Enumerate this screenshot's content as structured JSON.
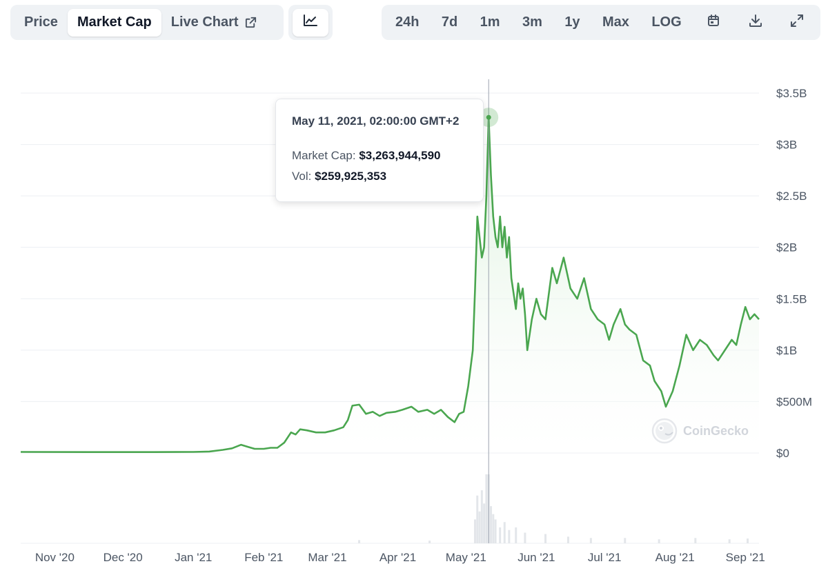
{
  "toolbar": {
    "tabs": [
      {
        "label": "Price",
        "active": false
      },
      {
        "label": "Market Cap",
        "active": true
      },
      {
        "label": "Live Chart",
        "active": false,
        "icon": "external-link-icon"
      }
    ],
    "chart_type_icon": "line-chart-icon",
    "ranges": [
      "24h",
      "7d",
      "1m",
      "3m",
      "1y",
      "Max",
      "LOG"
    ],
    "icons": [
      "calendar-icon",
      "download-icon",
      "expand-icon"
    ]
  },
  "tooltip": {
    "date": "May 11, 2021, 02:00:00 GMT+2",
    "market_cap_label": "Market Cap:",
    "market_cap_value": "$3,263,944,590",
    "vol_label": "Vol:",
    "vol_value": "$259,925,353"
  },
  "watermark": "CoinGecko",
  "colors": {
    "line": "#4aa64f",
    "fill_top": "#d7efd8",
    "grid": "#eceff3",
    "axis_text": "#4b5563",
    "volume_bar": "#e3e6ea"
  },
  "chart_data": {
    "type": "area",
    "series_label": "Market Cap",
    "x_tick_labels": [
      "Nov '20",
      "Dec '20",
      "Jan '21",
      "Feb '21",
      "Mar '21",
      "Apr '21",
      "May '21",
      "Jun '21",
      "Jul '21",
      "Aug '21",
      "Sep '21"
    ],
    "x_tick_dates": [
      "2020-11-01",
      "2020-12-01",
      "2021-01-01",
      "2021-02-01",
      "2021-03-01",
      "2021-04-01",
      "2021-05-01",
      "2021-06-01",
      "2021-07-01",
      "2021-08-01",
      "2021-09-01"
    ],
    "y_tick_labels": [
      "$0",
      "$500M",
      "$1B",
      "$1.5B",
      "$2B",
      "$2.5B",
      "$3B",
      "$3.5B"
    ],
    "y_tick_values": [
      0,
      500000000,
      1000000000,
      1500000000,
      2000000000,
      2500000000,
      3000000000,
      3500000000
    ],
    "ylim": [
      0,
      3500000000
    ],
    "xlim": [
      "2020-10-17",
      "2021-09-07"
    ],
    "grid": true,
    "hover_date": "2021-05-11",
    "market_cap": [
      [
        "2020-10-17",
        10000000
      ],
      [
        "2020-11-15",
        9000000
      ],
      [
        "2020-12-15",
        9000000
      ],
      [
        "2021-01-01",
        10000000
      ],
      [
        "2021-01-08",
        14000000
      ],
      [
        "2021-01-14",
        30000000
      ],
      [
        "2021-01-18",
        45000000
      ],
      [
        "2021-01-22",
        80000000
      ],
      [
        "2021-01-25",
        60000000
      ],
      [
        "2021-01-28",
        40000000
      ],
      [
        "2021-02-01",
        40000000
      ],
      [
        "2021-02-04",
        50000000
      ],
      [
        "2021-02-07",
        50000000
      ],
      [
        "2021-02-10",
        100000000
      ],
      [
        "2021-02-13",
        200000000
      ],
      [
        "2021-02-15",
        180000000
      ],
      [
        "2021-02-17",
        230000000
      ],
      [
        "2021-02-20",
        220000000
      ],
      [
        "2021-02-24",
        200000000
      ],
      [
        "2021-02-28",
        200000000
      ],
      [
        "2021-03-04",
        220000000
      ],
      [
        "2021-03-08",
        250000000
      ],
      [
        "2021-03-10",
        320000000
      ],
      [
        "2021-03-12",
        460000000
      ],
      [
        "2021-03-15",
        470000000
      ],
      [
        "2021-03-18",
        380000000
      ],
      [
        "2021-03-21",
        400000000
      ],
      [
        "2021-03-24",
        360000000
      ],
      [
        "2021-03-27",
        390000000
      ],
      [
        "2021-03-31",
        400000000
      ],
      [
        "2021-04-03",
        420000000
      ],
      [
        "2021-04-07",
        450000000
      ],
      [
        "2021-04-10",
        400000000
      ],
      [
        "2021-04-14",
        420000000
      ],
      [
        "2021-04-17",
        380000000
      ],
      [
        "2021-04-20",
        420000000
      ],
      [
        "2021-04-23",
        350000000
      ],
      [
        "2021-04-26",
        300000000
      ],
      [
        "2021-04-28",
        380000000
      ],
      [
        "2021-04-30",
        400000000
      ],
      [
        "2021-05-02",
        650000000
      ],
      [
        "2021-05-04",
        1000000000
      ],
      [
        "2021-05-05",
        1600000000
      ],
      [
        "2021-05-06",
        2300000000
      ],
      [
        "2021-05-07",
        2100000000
      ],
      [
        "2021-05-08",
        1900000000
      ],
      [
        "2021-05-09",
        2000000000
      ],
      [
        "2021-05-10",
        2500000000
      ],
      [
        "2021-05-11",
        3263944590
      ],
      [
        "2021-05-12",
        2700000000
      ],
      [
        "2021-05-13",
        2300000000
      ],
      [
        "2021-05-14",
        2100000000
      ],
      [
        "2021-05-15",
        2000000000
      ],
      [
        "2021-05-16",
        2300000000
      ],
      [
        "2021-05-17",
        2000000000
      ],
      [
        "2021-05-18",
        2200000000
      ],
      [
        "2021-05-19",
        1900000000
      ],
      [
        "2021-05-20",
        2100000000
      ],
      [
        "2021-05-21",
        1700000000
      ],
      [
        "2021-05-22",
        1550000000
      ],
      [
        "2021-05-23",
        1400000000
      ],
      [
        "2021-05-24",
        1650000000
      ],
      [
        "2021-05-25",
        1500000000
      ],
      [
        "2021-05-26",
        1600000000
      ],
      [
        "2021-05-27",
        1350000000
      ],
      [
        "2021-05-28",
        1000000000
      ],
      [
        "2021-05-30",
        1300000000
      ],
      [
        "2021-06-01",
        1500000000
      ],
      [
        "2021-06-03",
        1350000000
      ],
      [
        "2021-06-05",
        1300000000
      ],
      [
        "2021-06-08",
        1800000000
      ],
      [
        "2021-06-10",
        1650000000
      ],
      [
        "2021-06-13",
        1900000000
      ],
      [
        "2021-06-16",
        1600000000
      ],
      [
        "2021-06-19",
        1500000000
      ],
      [
        "2021-06-22",
        1700000000
      ],
      [
        "2021-06-25",
        1400000000
      ],
      [
        "2021-06-28",
        1300000000
      ],
      [
        "2021-07-01",
        1250000000
      ],
      [
        "2021-07-03",
        1100000000
      ],
      [
        "2021-07-05",
        1250000000
      ],
      [
        "2021-07-08",
        1400000000
      ],
      [
        "2021-07-10",
        1250000000
      ],
      [
        "2021-07-12",
        1200000000
      ],
      [
        "2021-07-15",
        1150000000
      ],
      [
        "2021-07-18",
        900000000
      ],
      [
        "2021-07-21",
        850000000
      ],
      [
        "2021-07-23",
        700000000
      ],
      [
        "2021-07-26",
        600000000
      ],
      [
        "2021-07-28",
        450000000
      ],
      [
        "2021-07-31",
        600000000
      ],
      [
        "2021-08-03",
        850000000
      ],
      [
        "2021-08-06",
        1150000000
      ],
      [
        "2021-08-09",
        1000000000
      ],
      [
        "2021-08-12",
        1100000000
      ],
      [
        "2021-08-15",
        1050000000
      ],
      [
        "2021-08-18",
        950000000
      ],
      [
        "2021-08-20",
        900000000
      ],
      [
        "2021-08-23",
        1000000000
      ],
      [
        "2021-08-26",
        1100000000
      ],
      [
        "2021-08-28",
        1050000000
      ],
      [
        "2021-08-30",
        1250000000
      ],
      [
        "2021-09-01",
        1420000000
      ],
      [
        "2021-09-03",
        1300000000
      ],
      [
        "2021-09-05",
        1350000000
      ],
      [
        "2021-09-07",
        1300000000
      ]
    ],
    "volume": [
      [
        "2021-03-15",
        12000000
      ],
      [
        "2021-04-15",
        10000000
      ],
      [
        "2021-05-05",
        90000000
      ],
      [
        "2021-05-06",
        180000000
      ],
      [
        "2021-05-07",
        120000000
      ],
      [
        "2021-05-08",
        200000000
      ],
      [
        "2021-05-09",
        150000000
      ],
      [
        "2021-05-10",
        260000000
      ],
      [
        "2021-05-11",
        259925353
      ],
      [
        "2021-05-12",
        140000000
      ],
      [
        "2021-05-13",
        110000000
      ],
      [
        "2021-05-14",
        90000000
      ],
      [
        "2021-05-16",
        60000000
      ],
      [
        "2021-05-18",
        80000000
      ],
      [
        "2021-05-20",
        50000000
      ],
      [
        "2021-05-23",
        60000000
      ],
      [
        "2021-05-27",
        40000000
      ],
      [
        "2021-06-05",
        35000000
      ],
      [
        "2021-06-15",
        25000000
      ],
      [
        "2021-06-25",
        20000000
      ],
      [
        "2021-07-10",
        20000000
      ],
      [
        "2021-07-25",
        15000000
      ],
      [
        "2021-08-10",
        20000000
      ],
      [
        "2021-08-25",
        15000000
      ],
      [
        "2021-09-02",
        18000000
      ]
    ]
  }
}
